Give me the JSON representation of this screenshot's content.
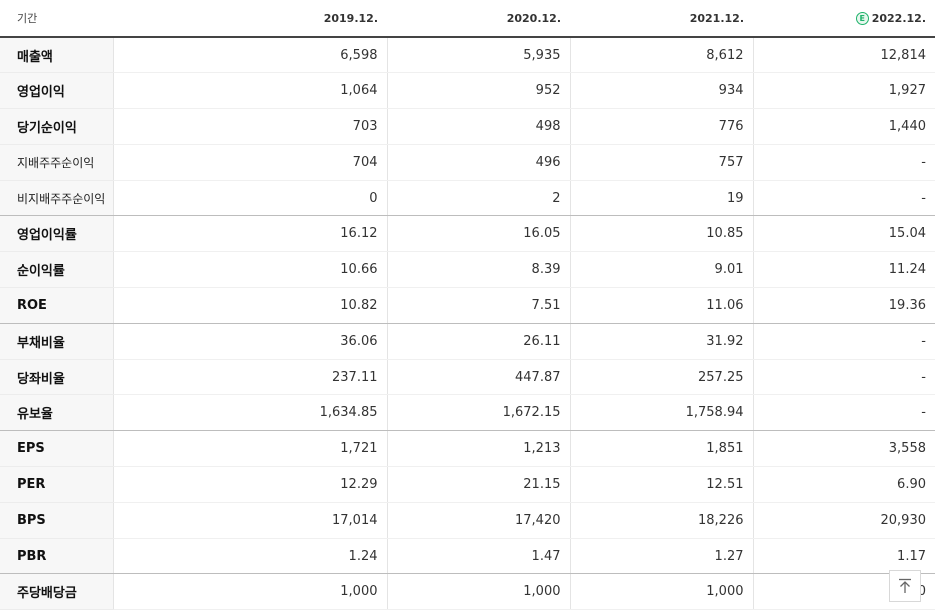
{
  "header": {
    "label": "기간",
    "periods": [
      "2019.12.",
      "2020.12.",
      "2021.12.",
      "2022.12."
    ],
    "estimate_icon_letter": "E",
    "estimate_color": "#1fb26b"
  },
  "rows": [
    {
      "label": "매출액",
      "values": [
        "6,598",
        "5,935",
        "8,612",
        "12,814"
      ]
    },
    {
      "label": "영업이익",
      "values": [
        "1,064",
        "952",
        "934",
        "1,927"
      ]
    },
    {
      "label": "당기순이익",
      "values": [
        "703",
        "498",
        "776",
        "1,440"
      ]
    },
    {
      "label": "지배주주순이익",
      "values": [
        "704",
        "496",
        "757",
        "-"
      ]
    },
    {
      "label": "비지배주주순이익",
      "values": [
        "0",
        "2",
        "19",
        "-"
      ]
    },
    {
      "label": "영업이익률",
      "values": [
        "16.12",
        "16.05",
        "10.85",
        "15.04"
      ]
    },
    {
      "label": "순이익률",
      "values": [
        "10.66",
        "8.39",
        "9.01",
        "11.24"
      ]
    },
    {
      "label": "ROE",
      "values": [
        "10.82",
        "7.51",
        "11.06",
        "19.36"
      ]
    },
    {
      "label": "부채비율",
      "values": [
        "36.06",
        "26.11",
        "31.92",
        "-"
      ]
    },
    {
      "label": "당좌비율",
      "values": [
        "237.11",
        "447.87",
        "257.25",
        "-"
      ]
    },
    {
      "label": "유보율",
      "values": [
        "1,634.85",
        "1,672.15",
        "1,758.94",
        "-"
      ]
    },
    {
      "label": "EPS",
      "values": [
        "1,721",
        "1,213",
        "1,851",
        "3,558"
      ]
    },
    {
      "label": "PER",
      "values": [
        "12.29",
        "21.15",
        "12.51",
        "6.90"
      ]
    },
    {
      "label": "BPS",
      "values": [
        "17,014",
        "17,420",
        "18,226",
        "20,930"
      ]
    },
    {
      "label": "PBR",
      "values": [
        "1.24",
        "1.47",
        "1.27",
        "1.17"
      ]
    },
    {
      "label": "주당배당금",
      "values": [
        "1,000",
        "1,000",
        "1,000",
        "1,000"
      ]
    }
  ],
  "scroll_top_icon": "arrow-up-to-top-icon"
}
